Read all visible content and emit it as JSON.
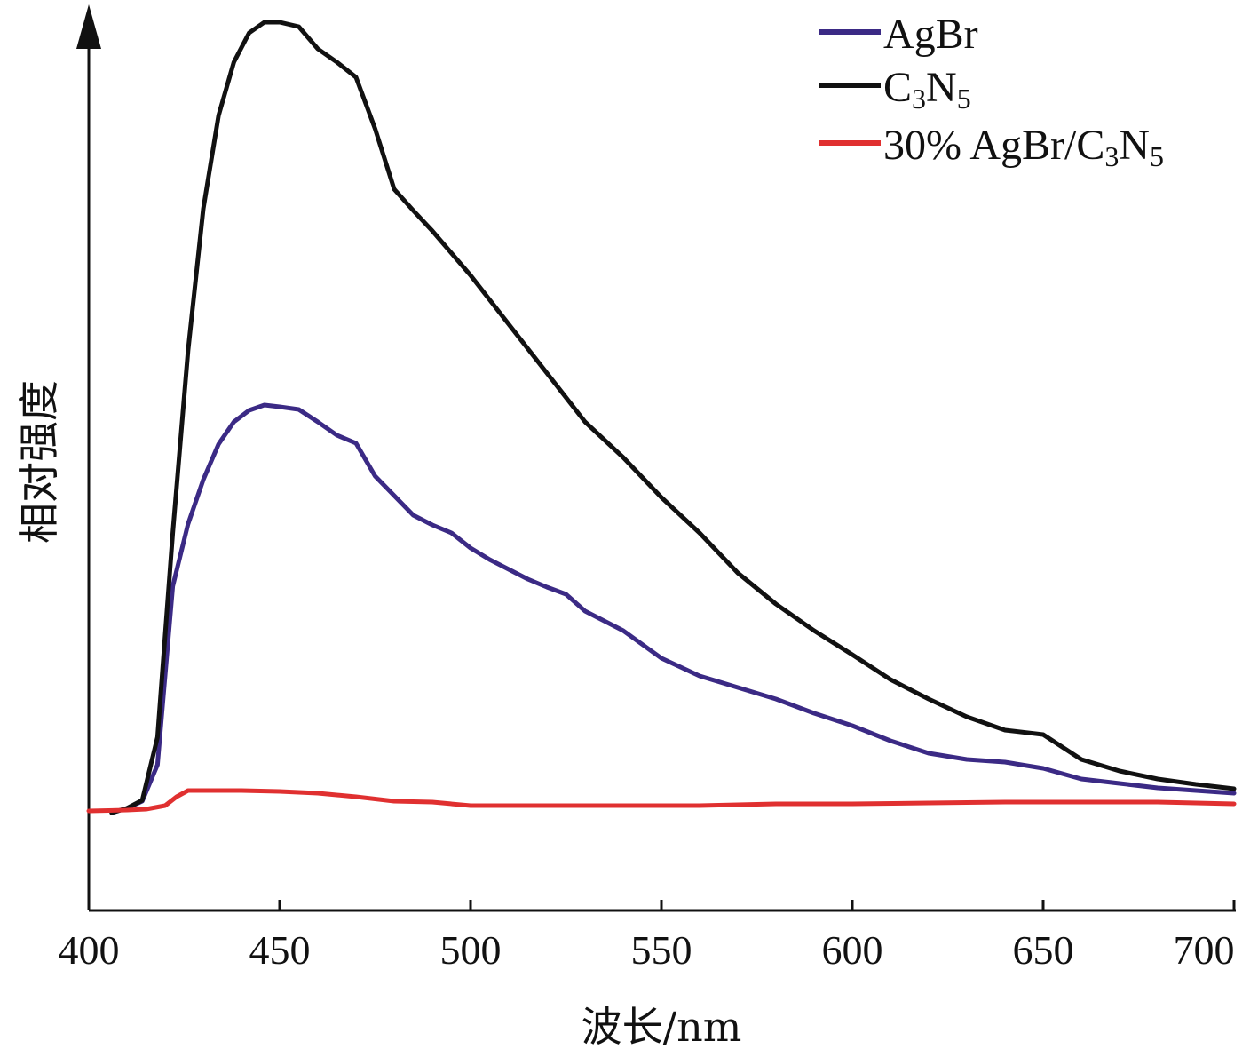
{
  "chart_data": {
    "type": "line",
    "xlabel": "波长/nm",
    "ylabel": "相对强度",
    "xlim": [
      400,
      700
    ],
    "ylim": [
      0,
      100
    ],
    "x_ticks": [
      "400",
      "450",
      "500",
      "550",
      "600",
      "650",
      "700"
    ],
    "y_tick_labels": false,
    "legend_position": "top-right",
    "series": [
      {
        "name": "AgBr",
        "name_parts": [
          [
            "AgBr",
            false
          ]
        ],
        "color": "#3b2a85",
        "x": [
          406,
          410,
          414,
          418,
          422,
          426,
          430,
          434,
          438,
          442,
          446,
          450,
          455,
          460,
          465,
          470,
          475,
          480,
          485,
          490,
          495,
          500,
          505,
          510,
          515,
          520,
          525,
          530,
          540,
          550,
          560,
          570,
          580,
          590,
          600,
          610,
          620,
          630,
          640,
          650,
          660,
          670,
          680,
          690,
          700
        ],
        "y": [
          11.0,
          11.5,
          12.3,
          16.4,
          36.5,
          43.5,
          48.5,
          52.5,
          55.0,
          56.3,
          56.9,
          56.7,
          56.4,
          55.0,
          53.5,
          52.6,
          48.9,
          46.7,
          44.5,
          43.4,
          42.5,
          40.8,
          39.5,
          38.4,
          37.3,
          36.4,
          35.6,
          33.7,
          31.5,
          28.4,
          26.4,
          25.1,
          23.8,
          22.2,
          20.8,
          19.1,
          17.7,
          17.0,
          16.7,
          16.0,
          14.8,
          14.3,
          13.8,
          13.5,
          13.2
        ]
      },
      {
        "name": "C3N5",
        "name_parts": [
          [
            "C",
            false
          ],
          [
            "3",
            true
          ],
          [
            "N",
            false
          ],
          [
            "5",
            true
          ]
        ],
        "color": "#111111",
        "x": [
          406,
          410,
          414,
          418,
          422,
          426,
          430,
          434,
          438,
          442,
          446,
          450,
          455,
          460,
          465,
          470,
          475,
          480,
          485,
          490,
          495,
          500,
          510,
          520,
          530,
          540,
          550,
          560,
          570,
          580,
          590,
          600,
          610,
          620,
          630,
          640,
          650,
          660,
          670,
          680,
          690,
          700
        ],
        "y": [
          11.0,
          11.5,
          12.4,
          19.5,
          42.5,
          63.0,
          79.0,
          89.5,
          95.5,
          98.8,
          100.0,
          100.0,
          99.5,
          97.0,
          95.5,
          93.8,
          88.0,
          81.2,
          78.8,
          76.5,
          74.0,
          71.5,
          66.0,
          60.5,
          55.0,
          51.0,
          46.5,
          42.5,
          38.0,
          34.5,
          31.5,
          28.8,
          26.0,
          23.8,
          21.8,
          20.3,
          19.8,
          17.0,
          15.7,
          14.8,
          14.2,
          13.7
        ]
      },
      {
        "name": "30% AgBr/C3N5",
        "name_parts": [
          [
            "30% AgBr/C",
            false
          ],
          [
            "3",
            true
          ],
          [
            "N",
            false
          ],
          [
            "5",
            true
          ]
        ],
        "color": "#e03030",
        "x": [
          400,
          410,
          415,
          420,
          423,
          426,
          440,
          450,
          460,
          470,
          480,
          490,
          500,
          520,
          540,
          560,
          580,
          600,
          620,
          640,
          660,
          680,
          700
        ],
        "y": [
          11.2,
          11.3,
          11.4,
          11.8,
          12.8,
          13.5,
          13.5,
          13.4,
          13.2,
          12.8,
          12.3,
          12.2,
          11.8,
          11.8,
          11.8,
          11.8,
          12.0,
          12.0,
          12.1,
          12.2,
          12.2,
          12.2,
          12.0
        ]
      }
    ]
  }
}
